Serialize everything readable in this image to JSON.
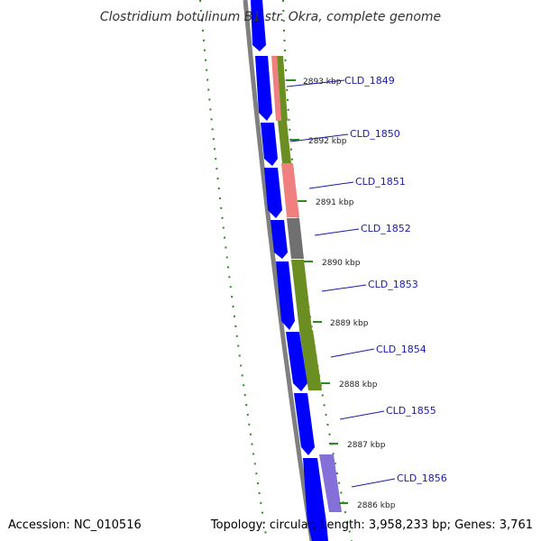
{
  "header": {
    "title": "Clostridium botulinum B1 str. Okra, complete genome"
  },
  "footer": {
    "accession": "Accession: NC_010516",
    "summary": "Topology: circular; Length: 3,958,233 bp; Genes: 3,761"
  },
  "ticks": [
    "2893 kbp",
    "2892 kbp",
    "2891 kbp",
    "2890 kbp",
    "2889 kbp",
    "2888 kbp",
    "2887 kbp",
    "2886 kbp"
  ],
  "genes": [
    "CLD_1849",
    "CLD_1850",
    "CLD_1851",
    "CLD_1852",
    "CLD_1853",
    "CLD_1854",
    "CLD_1855",
    "CLD_1856"
  ],
  "colors": {
    "cds": "#0000ff",
    "backbone": "#808080",
    "gc_skew": "#2e8b22",
    "cog_green": "#6b8e23",
    "cog_pink": "#f08080",
    "cog_gray": "#707070",
    "cog_purple": "#8470d8",
    "label_line": "#1a1aa8"
  }
}
